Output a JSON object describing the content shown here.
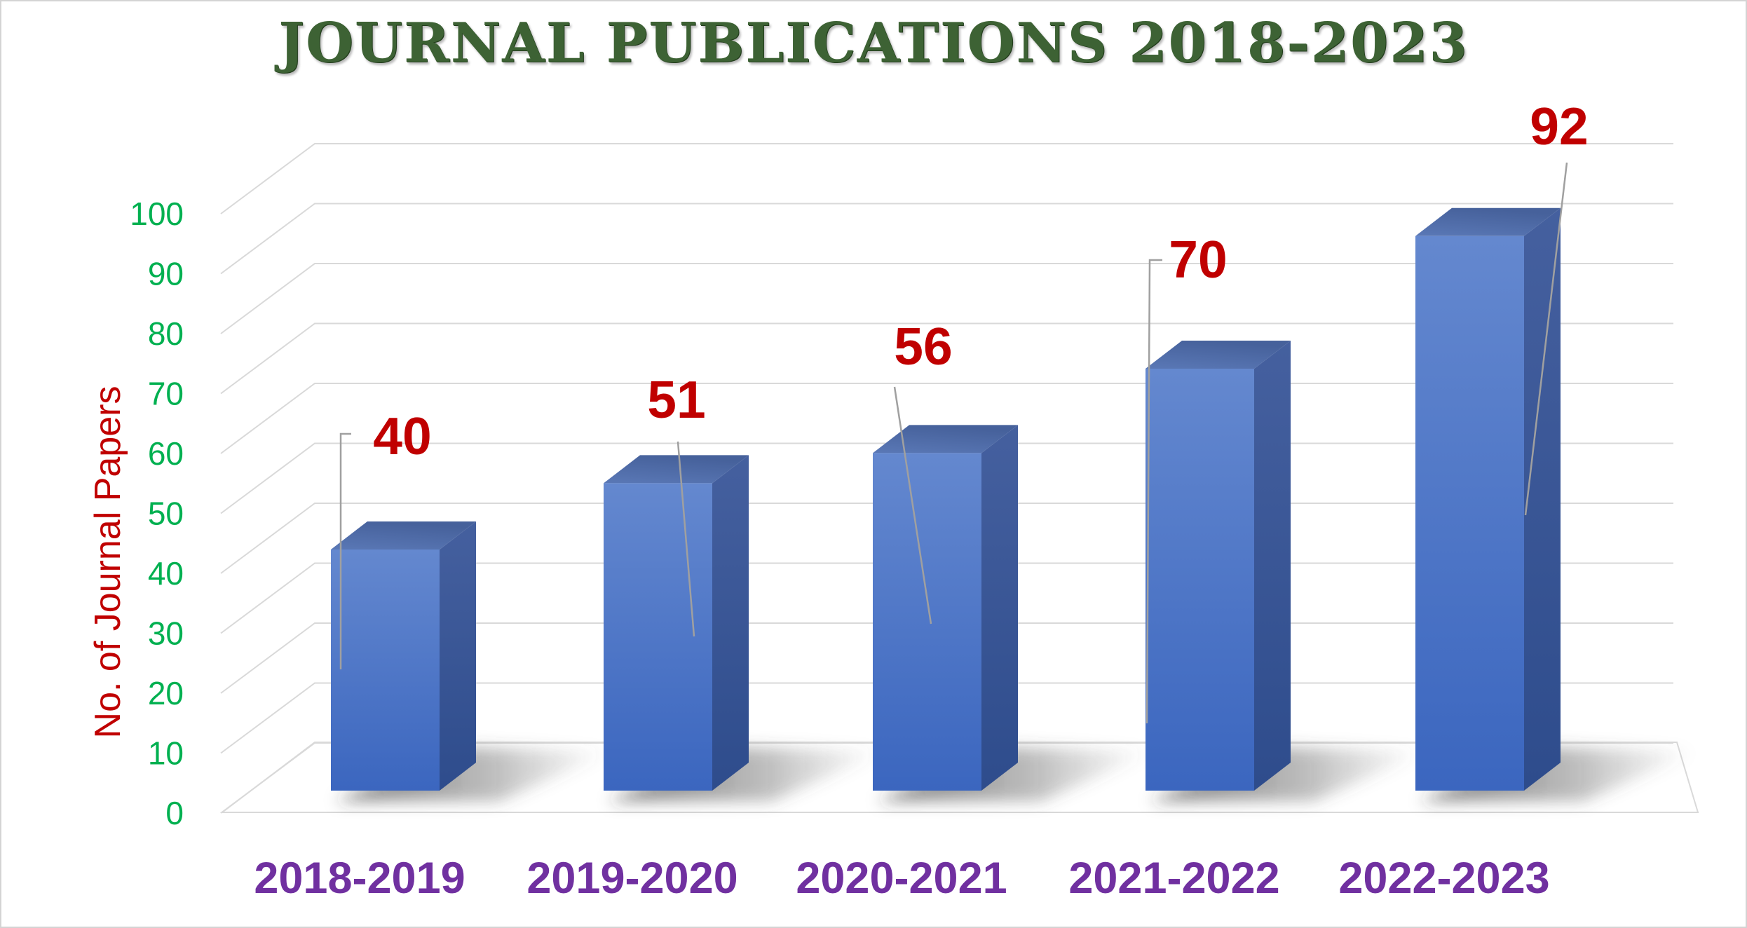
{
  "chart_data": {
    "type": "bar",
    "style": "3d-column",
    "title": "JOURNAL PUBLICATIONS 2018-2023",
    "categories": [
      "2018-2019",
      "2019-2020",
      "2020-2021",
      "2021-2022",
      "2022-2023"
    ],
    "values": [
      40,
      51,
      56,
      70,
      92
    ],
    "data_labels": [
      "40",
      "51",
      "56",
      "70",
      "92"
    ],
    "xlabel": "",
    "ylabel": "No. of Journal Papers",
    "yticks": [
      0,
      10,
      20,
      30,
      40,
      50,
      60,
      70,
      80,
      90,
      100
    ],
    "ylim": [
      0,
      100
    ],
    "grid": true,
    "legend": false,
    "colors": {
      "background": "#ffffff",
      "page_border": "#d4d4d4",
      "title": "#3d6234",
      "ytick": "#00b050",
      "ylabel": "#c00000",
      "data_label": "#c00000",
      "xtick": "#7030a0",
      "gridline": "#d9d9d9",
      "floor_stroke": "#d9d9d9",
      "leader_line": "#a0a0a0",
      "bar_front_top": "#6488cf",
      "bar_front_bottom": "#3b66bf",
      "bar_top_face": "#4e6ba8",
      "bar_side_top": "#45609f",
      "bar_side_bottom": "#2e4c8c",
      "shadow": "#303030"
    }
  }
}
